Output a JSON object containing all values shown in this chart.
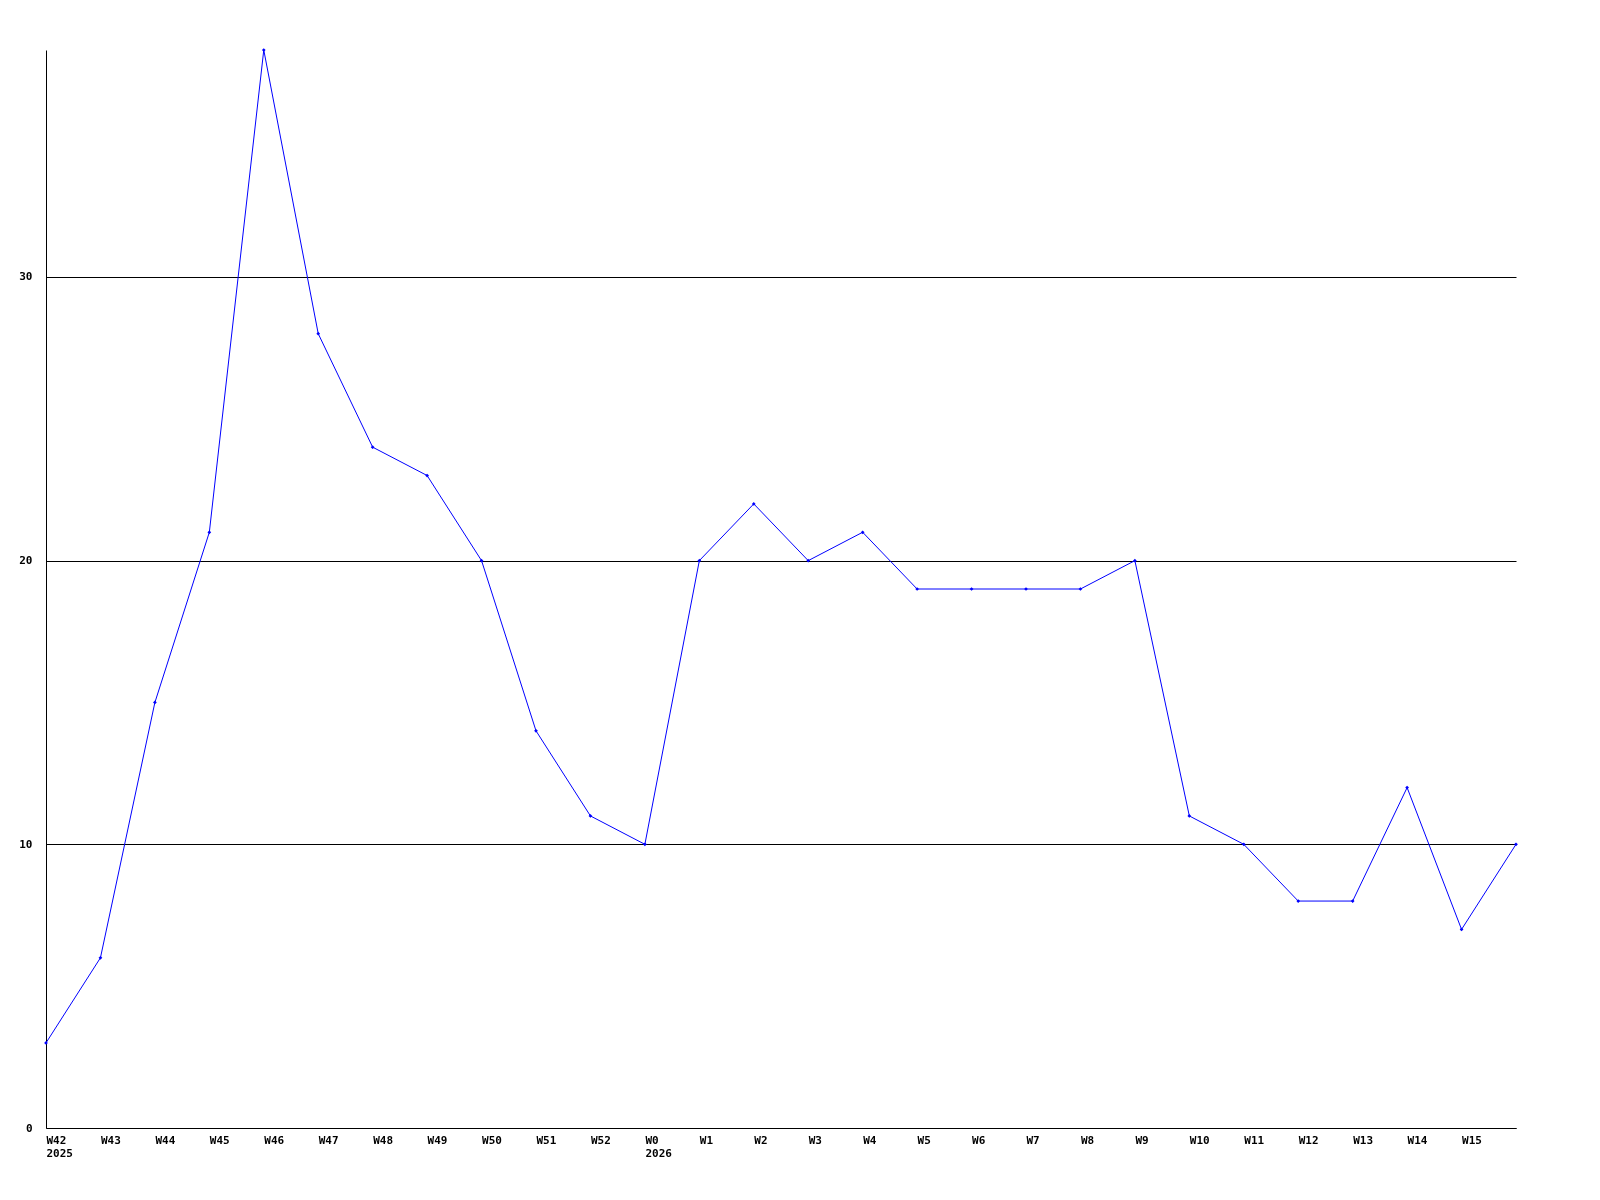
{
  "chart_data": {
    "type": "line",
    "categories": [
      "W42\n2025",
      "W43",
      "W44",
      "W45",
      "W46",
      "W47",
      "W48",
      "W49",
      "W50",
      "W51",
      "W52",
      "W0\n2026",
      "W1",
      "W2",
      "W3",
      "W4",
      "W5",
      "W6",
      "W7",
      "W8",
      "W9",
      "W10",
      "W11",
      "W12",
      "W13",
      "W14",
      "W15",
      null
    ],
    "series": [
      {
        "color": "#0000ff",
        "values": [
          3,
          6,
          15,
          21,
          38,
          28,
          24,
          23,
          20,
          14,
          11,
          10,
          20,
          22,
          20,
          21,
          19,
          19,
          19,
          19,
          20,
          11,
          10,
          8,
          8,
          12,
          7,
          10
        ]
      }
    ],
    "ylim": [
      0,
      38
    ],
    "yticks": [
      0,
      10,
      20,
      30
    ],
    "grid": "y",
    "marker": "diamond",
    "line_style": "solid"
  }
}
